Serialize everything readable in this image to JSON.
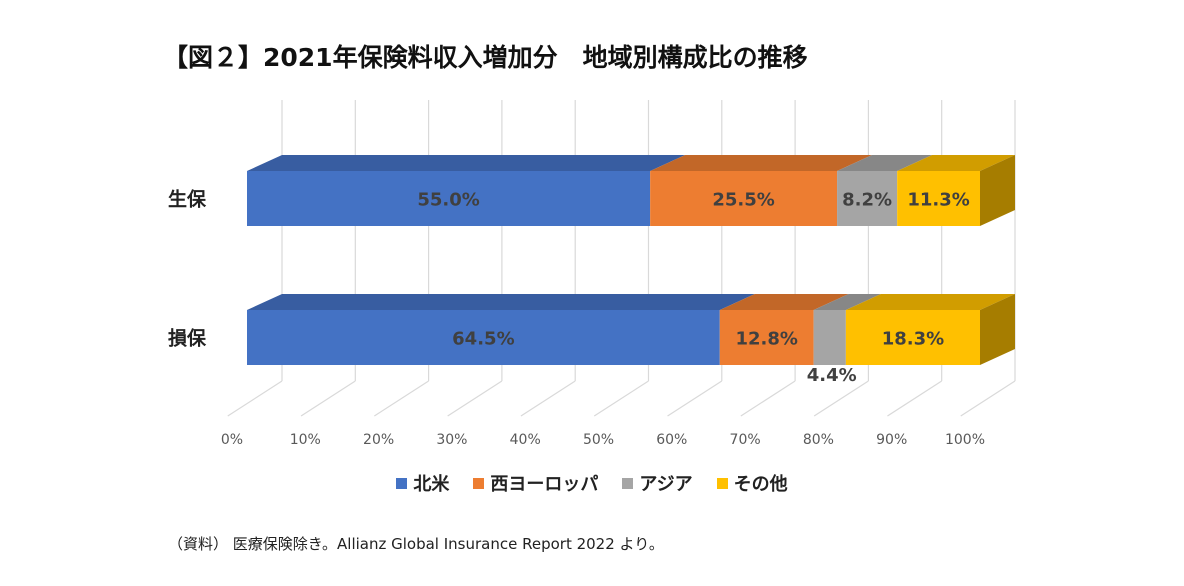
{
  "title": "【図２】2021年保険料収入増加分　地域別構成比の推移",
  "note": "（資料） 医療保険除き。Allianz Global Insurance Report 2022 より。",
  "colors": {
    "north_america": "#4472C4",
    "western_europe": "#ED7D31",
    "asia": "#A5A5A5",
    "other": "#FFC000"
  },
  "chart_data": {
    "type": "bar",
    "orientation": "horizontal",
    "stacked": "percent",
    "three_d": true,
    "categories": [
      "生保",
      "損保"
    ],
    "series": [
      {
        "name": "北米",
        "values": [
          55.0,
          64.5
        ],
        "labels": [
          "55.0%",
          "64.5%"
        ],
        "color": "#4472C4"
      },
      {
        "name": "西ヨーロッパ",
        "values": [
          25.5,
          12.8
        ],
        "labels": [
          "25.5%",
          "12.8%"
        ],
        "color": "#ED7D31"
      },
      {
        "name": "アジア",
        "values": [
          8.2,
          4.4
        ],
        "labels": [
          "8.2%",
          "4.4%"
        ],
        "color": "#A5A5A5"
      },
      {
        "name": "その他",
        "values": [
          11.3,
          18.3
        ],
        "labels": [
          "11.3%",
          "18.3%"
        ],
        "color": "#FFC000"
      }
    ],
    "xlim": [
      0,
      100
    ],
    "x_ticks": [
      "0%",
      "10%",
      "20%",
      "30%",
      "40%",
      "50%",
      "60%",
      "70%",
      "80%",
      "90%",
      "100%"
    ],
    "grid": true,
    "legend_position": "bottom"
  }
}
